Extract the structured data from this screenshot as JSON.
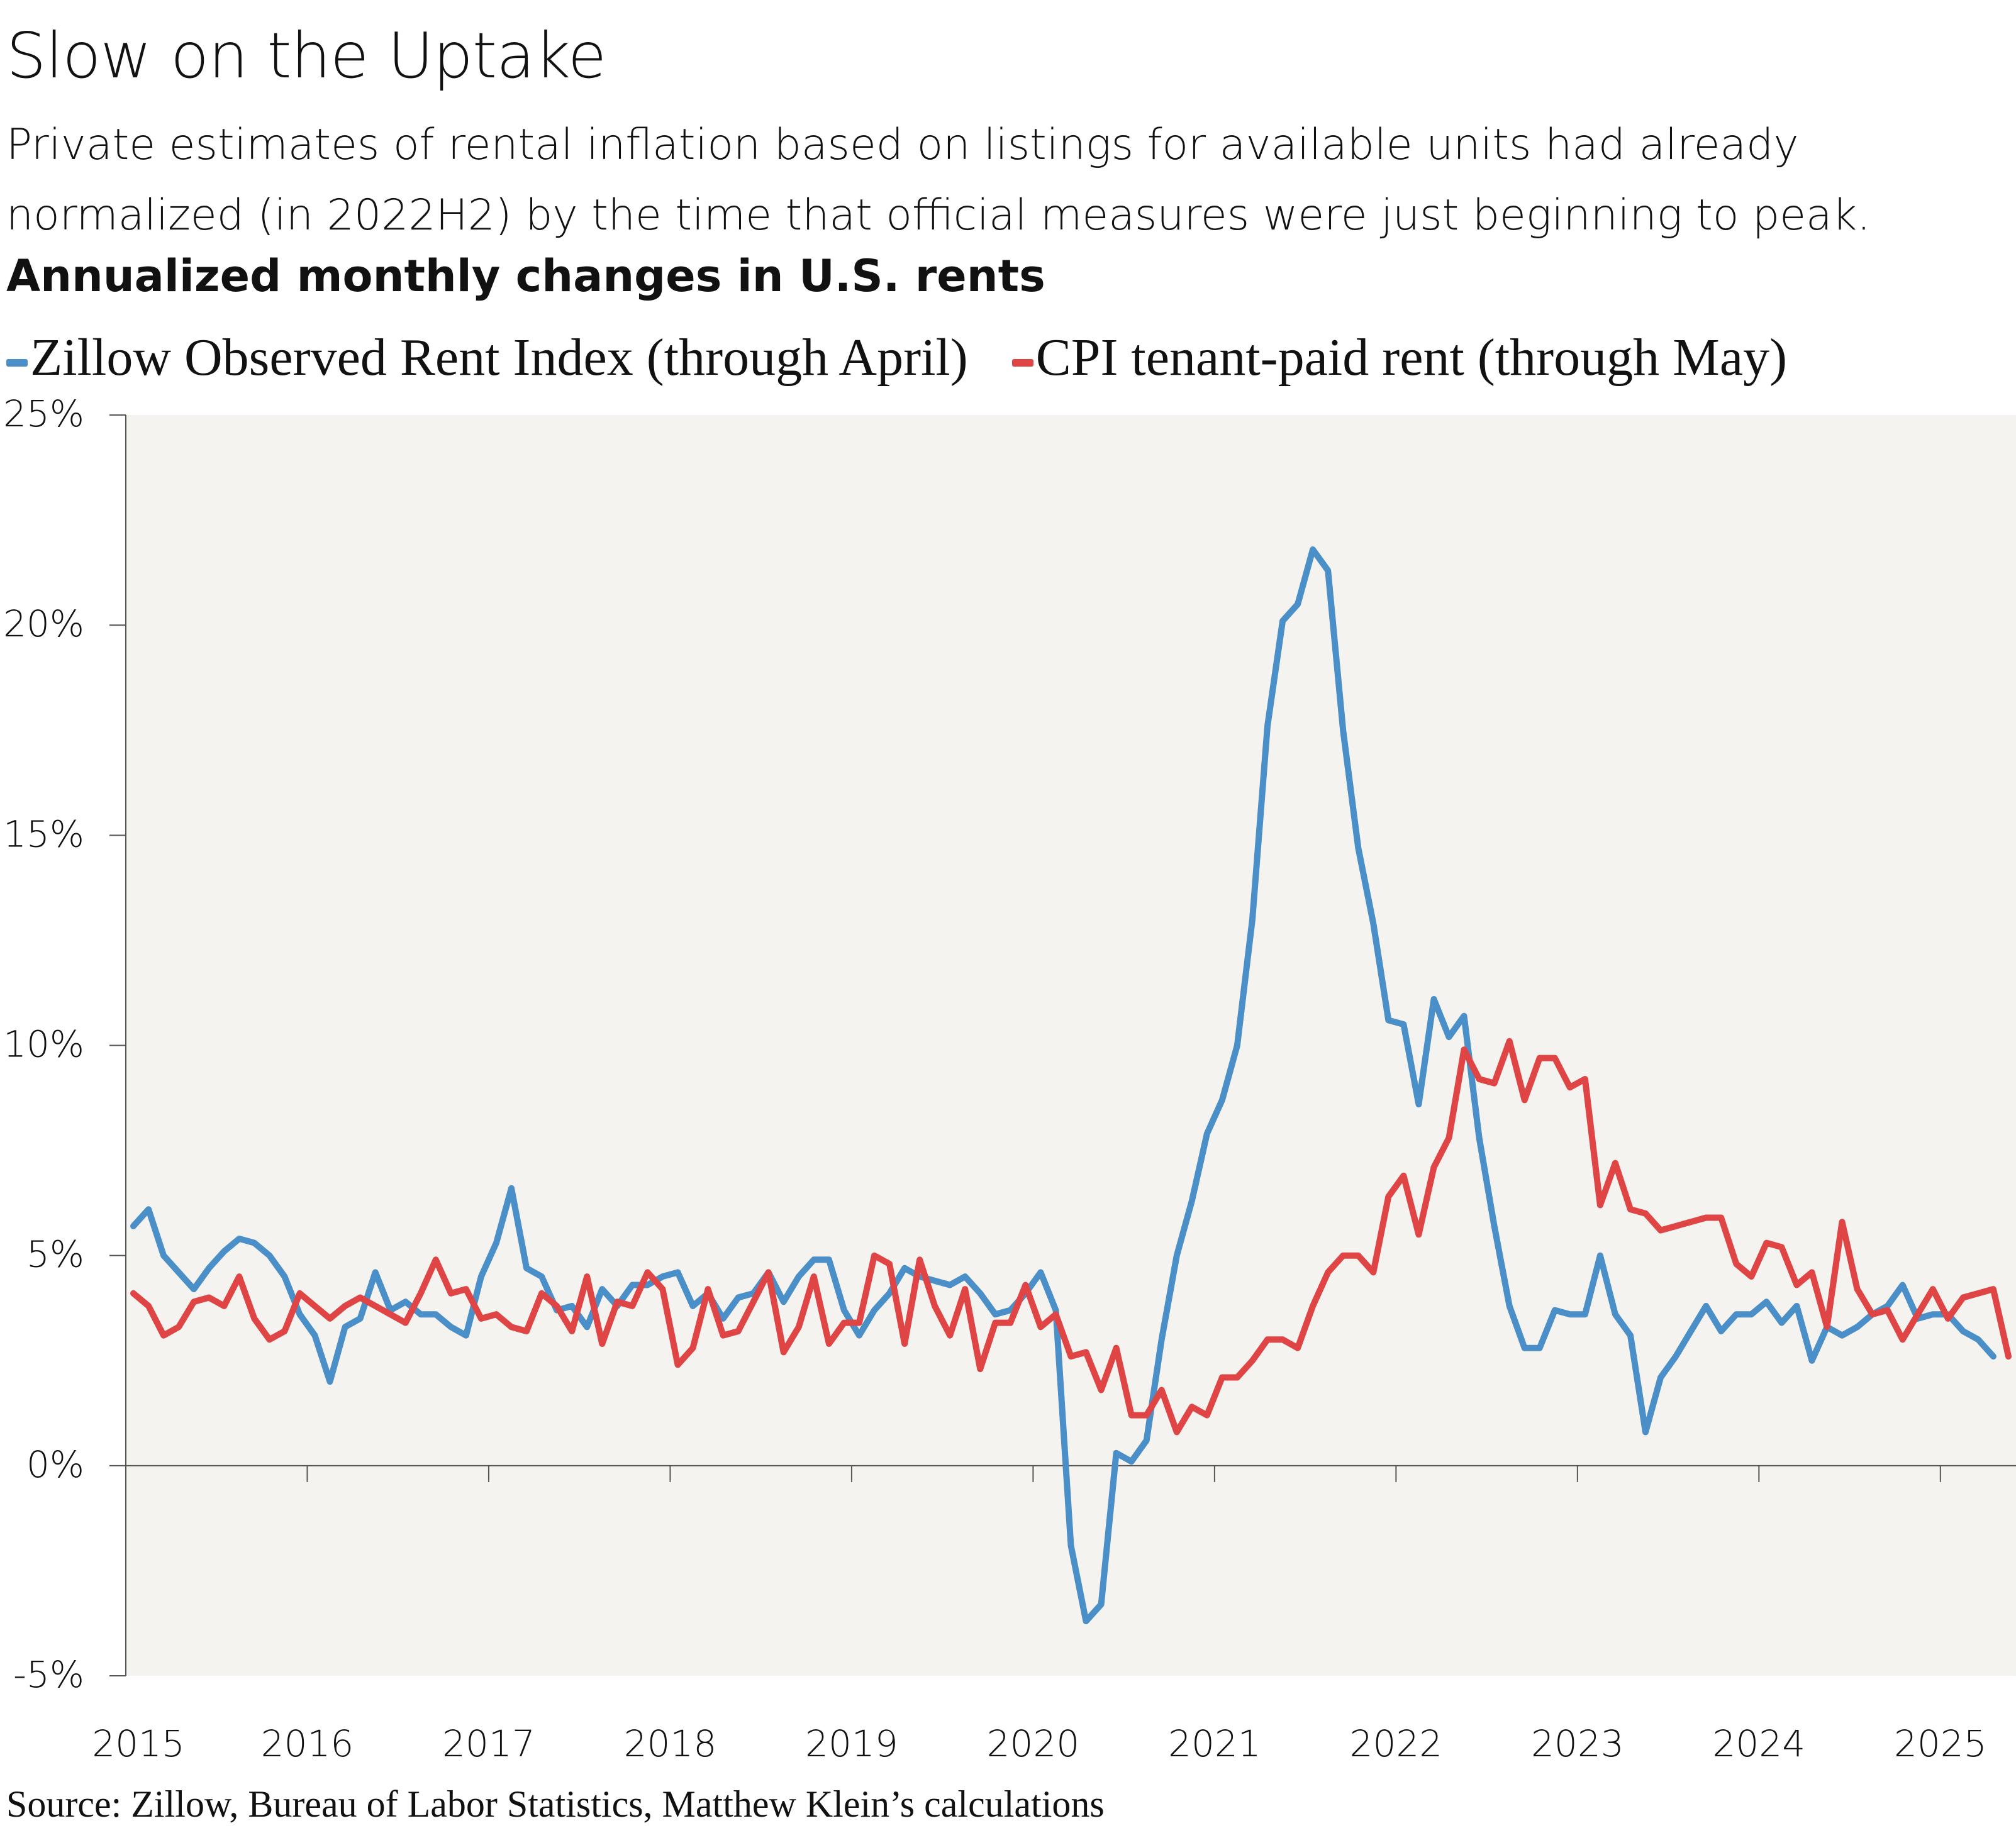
{
  "chart_data": {
    "type": "line",
    "title": "Slow on the Uptake",
    "subtitle": "Private estimates of rental inflation based on listings for available units had already normalized (in 2022H2) by the time that official measures were just beginning to peak.",
    "chart_title": "Annualized monthly changes in U.S. rents",
    "source": "Source: Zillow, Bureau of Labor Statistics, Matthew Klein’s calculations",
    "categories": [
      "2015",
      null,
      null,
      null,
      null,
      null,
      null,
      null,
      null,
      null,
      null,
      null,
      "2016",
      null,
      null,
      null,
      null,
      null,
      null,
      null,
      null,
      null,
      null,
      null,
      "2017",
      null,
      null,
      null,
      null,
      null,
      null,
      null,
      null,
      null,
      null,
      null,
      "2018",
      null,
      null,
      null,
      null,
      null,
      null,
      null,
      null,
      null,
      null,
      null,
      "2019",
      null,
      null,
      null,
      null,
      null,
      null,
      null,
      null,
      null,
      null,
      null,
      "2020",
      null,
      null,
      null,
      null,
      null,
      null,
      null,
      null,
      null,
      null,
      null,
      "2021",
      null,
      null,
      null,
      null,
      null,
      null,
      null,
      null,
      null,
      null,
      null,
      "2022",
      null,
      null,
      null,
      null,
      null,
      null,
      null,
      null,
      null,
      null,
      null,
      "2023",
      null,
      null,
      null,
      null,
      null,
      null,
      null,
      null,
      null,
      null,
      null,
      "2024",
      null,
      null,
      null,
      null,
      null,
      null,
      null,
      null,
      null,
      null,
      null,
      "2025",
      null,
      null,
      null,
      null
    ],
    "series": [
      {
        "name": "Zillow Observed Rent Index (through April)",
        "color": "#4a8fc7",
        "values": [
          5.7,
          6.1,
          5.0,
          4.6,
          4.2,
          4.7,
          5.1,
          5.4,
          5.3,
          5.0,
          4.5,
          3.6,
          3.1,
          2.0,
          3.3,
          3.5,
          4.6,
          3.7,
          3.9,
          3.6,
          3.6,
          3.3,
          3.1,
          4.5,
          5.3,
          6.6,
          4.7,
          4.5,
          3.7,
          3.8,
          3.3,
          4.2,
          3.8,
          4.3,
          4.3,
          4.5,
          4.6,
          3.8,
          4.1,
          3.5,
          4.0,
          4.1,
          4.6,
          3.9,
          4.5,
          4.9,
          4.9,
          3.7,
          3.1,
          3.7,
          4.1,
          4.7,
          4.5,
          4.4,
          4.3,
          4.5,
          4.1,
          3.6,
          3.7,
          4.1,
          4.6,
          3.7,
          -1.9,
          -3.7,
          -3.3,
          0.3,
          0.1,
          0.6,
          3.0,
          5.0,
          6.3,
          7.9,
          8.7,
          10.0,
          13.0,
          17.6,
          20.1,
          20.5,
          21.8,
          21.3,
          17.5,
          14.7,
          12.9,
          10.6,
          10.5,
          8.6,
          11.1,
          10.2,
          10.7,
          7.8,
          5.7,
          3.8,
          2.8,
          2.8,
          3.7,
          3.6,
          3.6,
          5.0,
          3.6,
          3.1,
          0.8,
          2.1,
          2.6,
          3.2,
          3.8,
          3.2,
          3.6,
          3.6,
          3.9,
          3.4,
          3.8,
          2.5,
          3.3,
          3.1,
          3.3,
          3.6,
          3.8,
          4.3,
          3.5,
          3.6,
          3.6,
          3.2,
          3.0,
          2.6,
          null
        ]
      },
      {
        "name": "CPI tenant-paid rent (through May)",
        "color": "#e04545",
        "values": [
          4.1,
          3.8,
          3.1,
          3.3,
          3.9,
          4.0,
          3.8,
          4.5,
          3.5,
          3.0,
          3.2,
          4.1,
          3.8,
          3.5,
          3.8,
          4.0,
          3.8,
          3.6,
          3.4,
          4.1,
          4.9,
          4.1,
          4.2,
          3.5,
          3.6,
          3.3,
          3.2,
          4.1,
          3.8,
          3.2,
          4.5,
          2.9,
          3.9,
          3.8,
          4.6,
          4.2,
          2.4,
          2.8,
          4.2,
          3.1,
          3.2,
          3.9,
          4.6,
          2.7,
          3.3,
          4.5,
          2.9,
          3.4,
          3.4,
          5.0,
          4.8,
          2.9,
          4.9,
          3.8,
          3.1,
          4.2,
          2.3,
          3.4,
          3.4,
          4.3,
          3.3,
          3.6,
          2.6,
          2.7,
          1.8,
          2.8,
          1.2,
          1.2,
          1.8,
          0.8,
          1.4,
          1.2,
          2.1,
          2.1,
          2.5,
          3.0,
          3.0,
          2.8,
          3.8,
          4.6,
          5.0,
          5.0,
          4.6,
          6.4,
          6.9,
          5.5,
          7.1,
          7.8,
          9.9,
          9.2,
          9.1,
          10.1,
          8.7,
          9.7,
          9.7,
          9.0,
          9.2,
          6.2,
          7.2,
          6.1,
          6.0,
          5.6,
          5.7,
          5.8,
          5.9,
          5.9,
          4.8,
          4.5,
          5.3,
          5.2,
          4.3,
          4.6,
          3.3,
          5.8,
          4.2,
          3.6,
          3.7,
          3.0,
          3.6,
          4.2,
          3.5,
          4.0,
          4.1,
          4.2,
          2.6
        ]
      }
    ],
    "ylim": [
      -5,
      25
    ],
    "yticks": [
      {
        "value": -5,
        "label": "-5%"
      },
      {
        "value": 0,
        "label": "0%"
      },
      {
        "value": 5,
        "label": "5%"
      },
      {
        "value": 10,
        "label": "10%"
      },
      {
        "value": 15,
        "label": "15%"
      },
      {
        "value": 20,
        "label": "20%"
      },
      {
        "value": 25,
        "label": "25%"
      }
    ],
    "background": "#f5f3ef"
  }
}
